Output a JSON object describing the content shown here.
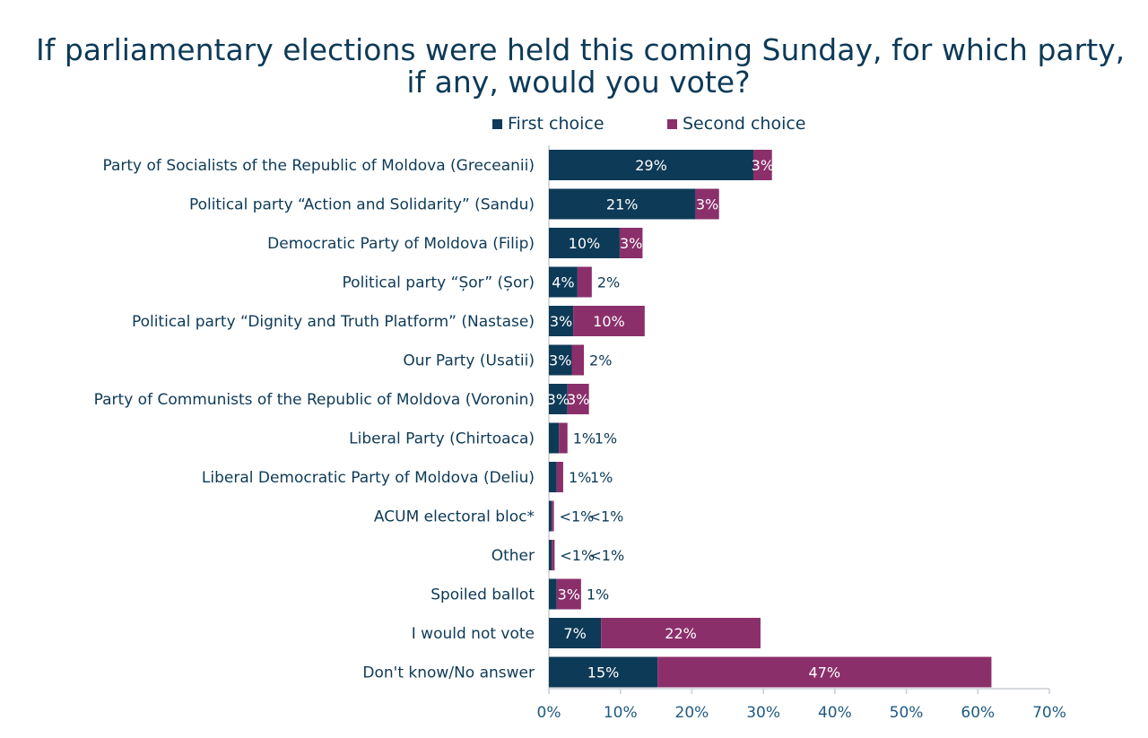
{
  "chart_data": {
    "type": "bar",
    "orientation": "horizontal",
    "stacked": true,
    "title_lines": [
      "If parliamentary elections were held this coming Sunday, for which party,",
      "if any, would you vote?"
    ],
    "categories": [
      "Party of Socialists of the Republic of Moldova (Greceanii)",
      "Political party “Action and Solidarity” (Sandu)",
      "Democratic Party of Moldova (Filip)",
      "Political party “Șor” (Șor)",
      "Political party “Dignity and Truth Platform” (Nastase)",
      "Our Party (Usatii)",
      "Party of Communists of the Republic of Moldova (Voronin)",
      "Liberal Party (Chirtoaca)",
      "Liberal Democratic Party of Moldova (Deliu)",
      "ACUM electoral bloc*",
      "Other",
      "Spoiled ballot",
      "I would not vote",
      "Don't know/No answer"
    ],
    "series": [
      {
        "name": "First choice",
        "color": "#0d3a57",
        "values": [
          28.6,
          20.5,
          9.9,
          4.0,
          3.4,
          3.2,
          2.6,
          1.4,
          1.1,
          0.4,
          0.4,
          1.1,
          7.3,
          15.2
        ],
        "labels": [
          "29%",
          "21%",
          "10%",
          "4%",
          "3%",
          "3%",
          "3%",
          "1%",
          "1%",
          "<1%",
          "<1%",
          "1%",
          "7%",
          "15%"
        ]
      },
      {
        "name": "Second choice",
        "color": "#8b2f6b",
        "values": [
          2.6,
          3.3,
          3.2,
          2.0,
          10.0,
          1.7,
          3.0,
          1.2,
          0.9,
          0.3,
          0.4,
          3.4,
          22.3,
          46.7
        ],
        "labels": [
          "3%",
          "3%",
          "3%",
          "2%",
          "10%",
          "2%",
          "3%",
          "1%",
          "1%",
          "<1%",
          "<1%",
          "3%",
          "22%",
          "47%"
        ]
      }
    ],
    "xlim": [
      0,
      70
    ],
    "xticks": [
      "0%",
      "10%",
      "20%",
      "30%",
      "40%",
      "50%",
      "60%",
      "70%"
    ],
    "legend_position": "top",
    "grid": false
  }
}
